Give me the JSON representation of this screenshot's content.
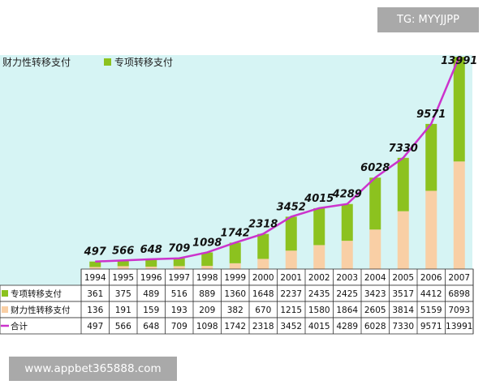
{
  "overlay": {
    "tg_text": "TG: MYYJJPP",
    "url_text": "www.appbet365888.com"
  },
  "colors": {
    "chart_background": "#d6f4f4",
    "special_transfer": "#8cc21f",
    "general_transfer": "#f9cfa5",
    "total_line": "#cc33cc"
  },
  "chart_data": {
    "type": "bar",
    "stacked": true,
    "title": "",
    "xlabel": "",
    "ylabel": "",
    "legend_placement": "top-left",
    "categories": [
      "1994",
      "1995",
      "1996",
      "1997",
      "1998",
      "1999",
      "2000",
      "2001",
      "2002",
      "2003",
      "2004",
      "2005",
      "2006",
      "2007"
    ],
    "series": [
      {
        "name": "专项转移支付",
        "color": "#8cc21f",
        "values": [
          361,
          375,
          489,
          516,
          889,
          1360,
          1648,
          2237,
          2435,
          2425,
          3423,
          3517,
          4412,
          6898
        ]
      },
      {
        "name": "财力性转移支付",
        "color": "#f9cfa5",
        "values": [
          136,
          191,
          159,
          193,
          209,
          382,
          670,
          1215,
          1580,
          1864,
          2605,
          3814,
          5159,
          7093
        ]
      }
    ],
    "line_series": {
      "name": "合计",
      "color": "#cc33cc",
      "values": [
        497,
        566,
        648,
        709,
        1098,
        1742,
        2318,
        3452,
        4015,
        4289,
        6028,
        7330,
        9571,
        13991
      ]
    },
    "table_rows": [
      {
        "label": "专项转移支付",
        "values": [
          "361",
          "375",
          "489",
          "516",
          "889",
          "1360",
          "1648",
          "2237",
          "2435",
          "2425",
          "3423",
          "3517",
          "4412",
          "6898"
        ]
      },
      {
        "label": "财力性转移支付",
        "values": [
          "136",
          "191",
          "159",
          "193",
          "209",
          "382",
          "670",
          "1215",
          "1580",
          "1864",
          "2605",
          "3814",
          "5159",
          "7093"
        ]
      },
      {
        "label": "合计",
        "values": [
          "497",
          "566",
          "648",
          "709",
          "1098",
          "1742",
          "2318",
          "3452",
          "4015",
          "4289",
          "6028",
          "7330",
          "9571",
          "13991"
        ]
      }
    ],
    "grid": false
  }
}
